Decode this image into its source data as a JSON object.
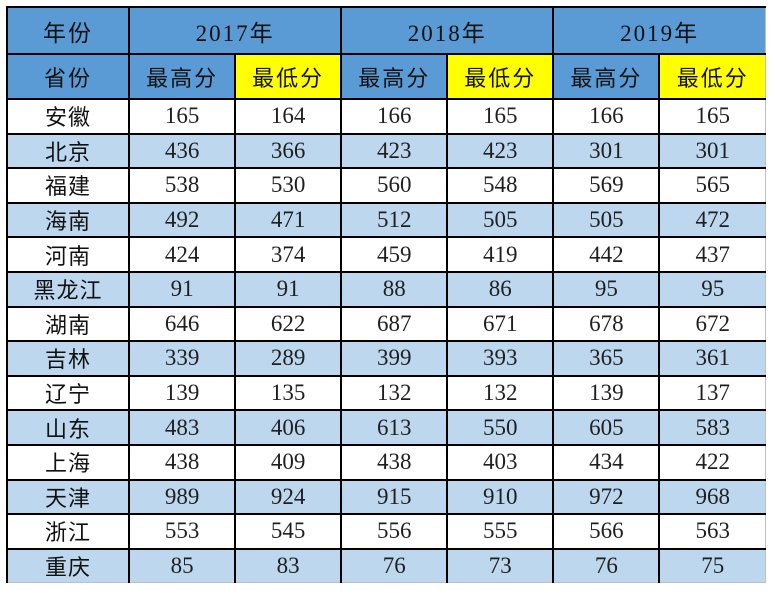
{
  "table": {
    "corner_top": "年份",
    "corner_bottom": "省份",
    "years": [
      "2017年",
      "2018年",
      "2019年"
    ],
    "sub_max": "最高分",
    "sub_min": "最低分"
  },
  "colors": {
    "header_blue": "#5b9bd5",
    "alt_row_blue": "#bdd7ee",
    "min_header_yellow": "#ffff00",
    "border_black": "#000000",
    "outer_gridline_gray": "#bfbfbf",
    "text": "#111111"
  },
  "chart_data": {
    "type": "table",
    "title": "",
    "corner_labels": {
      "top": "年份",
      "bottom": "省份"
    },
    "year_groups": [
      "2017年",
      "2018年",
      "2019年"
    ],
    "sub_columns": [
      "最高分",
      "最低分"
    ],
    "columns": [
      "省份",
      "2017年最高分",
      "2017年最低分",
      "2018年最高分",
      "2018年最低分",
      "2019年最高分",
      "2019年最低分"
    ],
    "rows": [
      {
        "province": "安徽",
        "values": [
          165,
          164,
          166,
          165,
          166,
          165
        ]
      },
      {
        "province": "北京",
        "values": [
          436,
          366,
          423,
          423,
          301,
          301
        ]
      },
      {
        "province": "福建",
        "values": [
          538,
          530,
          560,
          548,
          569,
          565
        ]
      },
      {
        "province": "海南",
        "values": [
          492,
          471,
          512,
          505,
          505,
          472
        ]
      },
      {
        "province": "河南",
        "values": [
          424,
          374,
          459,
          419,
          442,
          437
        ]
      },
      {
        "province": "黑龙江",
        "values": [
          91,
          91,
          88,
          86,
          95,
          95
        ]
      },
      {
        "province": "湖南",
        "values": [
          646,
          622,
          687,
          671,
          678,
          672
        ]
      },
      {
        "province": "吉林",
        "values": [
          339,
          289,
          399,
          393,
          365,
          361
        ]
      },
      {
        "province": "辽宁",
        "values": [
          139,
          135,
          132,
          132,
          139,
          137
        ]
      },
      {
        "province": "山东",
        "values": [
          483,
          406,
          613,
          550,
          605,
          583
        ]
      },
      {
        "province": "上海",
        "values": [
          438,
          409,
          438,
          403,
          434,
          422
        ]
      },
      {
        "province": "天津",
        "values": [
          989,
          924,
          915,
          910,
          972,
          968
        ]
      },
      {
        "province": "浙江",
        "values": [
          553,
          545,
          556,
          555,
          566,
          563
        ]
      },
      {
        "province": "重庆",
        "values": [
          85,
          83,
          76,
          73,
          76,
          75
        ]
      }
    ]
  }
}
